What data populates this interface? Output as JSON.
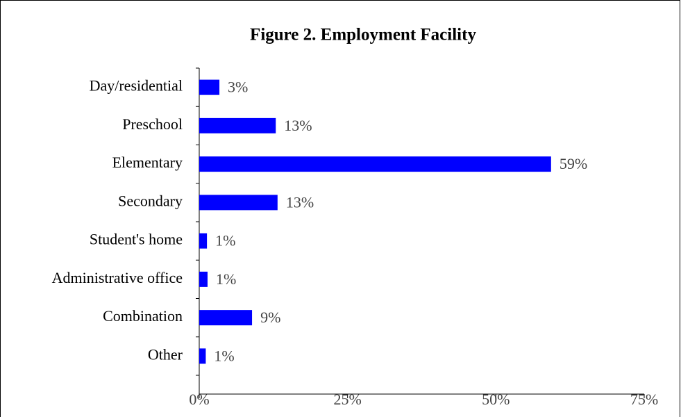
{
  "chart_data": {
    "type": "hbar",
    "title": "Figure 2. Employment Facility",
    "categories": [
      "Day/residential",
      "Preschool",
      "Elementary",
      "Secondary",
      "Student's home",
      "Administrative office",
      "Combination",
      "Other"
    ],
    "values": [
      3.4,
      12.9,
      59.3,
      13.2,
      1.3,
      1.4,
      8.9,
      1.1
    ],
    "value_labels": [
      "3%",
      "13%",
      "59%",
      "13%",
      "1%",
      "1%",
      "9%",
      "1%"
    ],
    "color": "#0000ff",
    "xlim": [
      0,
      75
    ],
    "xticks": [
      {
        "value": 0,
        "label": "0%"
      },
      {
        "value": 25,
        "label": "25%"
      },
      {
        "value": 50,
        "label": "50%"
      },
      {
        "value": 75,
        "label": "75%"
      }
    ]
  }
}
